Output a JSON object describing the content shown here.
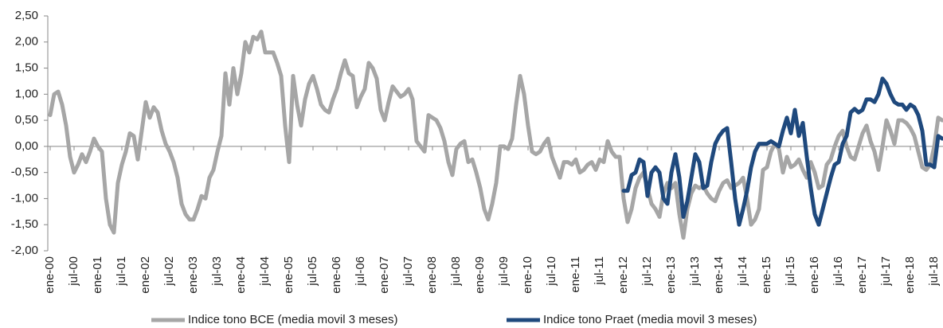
{
  "chart_data": {
    "type": "line",
    "categories": [
      "ene-00",
      null,
      null,
      null,
      null,
      null,
      "jul-00",
      null,
      null,
      null,
      null,
      null,
      "ene-01",
      null,
      null,
      null,
      null,
      null,
      "jul-01",
      null,
      null,
      null,
      null,
      null,
      "ene-02",
      null,
      null,
      null,
      null,
      null,
      "jul-02",
      null,
      null,
      null,
      null,
      null,
      "ene-03",
      null,
      null,
      null,
      null,
      null,
      "jul-03",
      null,
      null,
      null,
      null,
      null,
      "ene-04",
      null,
      null,
      null,
      null,
      null,
      "jul-04",
      null,
      null,
      null,
      null,
      null,
      "ene-05",
      null,
      null,
      null,
      null,
      null,
      "jul-05",
      null,
      null,
      null,
      null,
      null,
      "ene-06",
      null,
      null,
      null,
      null,
      null,
      "jul-06",
      null,
      null,
      null,
      null,
      null,
      "ene-07",
      null,
      null,
      null,
      null,
      null,
      "jul-07",
      null,
      null,
      null,
      null,
      null,
      "ene-08",
      null,
      null,
      null,
      null,
      null,
      "jul-08",
      null,
      null,
      null,
      null,
      null,
      "ene-09",
      null,
      null,
      null,
      null,
      null,
      "jul-09",
      null,
      null,
      null,
      null,
      null,
      "ene-10",
      null,
      null,
      null,
      null,
      null,
      "jul-10",
      null,
      null,
      null,
      null,
      null,
      "ene-11",
      null,
      null,
      null,
      null,
      null,
      "jul-11",
      null,
      null,
      null,
      null,
      null,
      "ene-12",
      null,
      null,
      null,
      null,
      null,
      "jul-12",
      null,
      null,
      null,
      null,
      null,
      "ene-13",
      null,
      null,
      null,
      null,
      null,
      "jul-13",
      null,
      null,
      null,
      null,
      null,
      "ene-14",
      null,
      null,
      null,
      null,
      null,
      "jul-14",
      null,
      null,
      null,
      null,
      null,
      "ene-15",
      null,
      null,
      null,
      null,
      null,
      "jul-15",
      null,
      null,
      null,
      null,
      null,
      "ene-16",
      null,
      null,
      null,
      null,
      null,
      "jul-16",
      null,
      null,
      null,
      null,
      null,
      "ene-17",
      null,
      null,
      null,
      null,
      null,
      "jul-17",
      null,
      null,
      null,
      null,
      null,
      "ene-18",
      null,
      null,
      null,
      null,
      null,
      "jul-18",
      null,
      null
    ],
    "series": [
      {
        "name": "Indice tono BCE (media movil 3 meses)",
        "color": "#a6a6a6",
        "values": [
          0.6,
          1.0,
          1.05,
          0.8,
          0.4,
          -0.2,
          -0.5,
          -0.35,
          -0.15,
          -0.3,
          -0.1,
          0.15,
          0.0,
          -0.1,
          -1.0,
          -1.5,
          -1.65,
          -0.7,
          -0.35,
          -0.1,
          0.25,
          0.2,
          -0.25,
          0.3,
          0.85,
          0.55,
          0.75,
          0.65,
          0.3,
          0.05,
          -0.1,
          -0.3,
          -0.6,
          -1.1,
          -1.3,
          -1.4,
          -1.4,
          -1.2,
          -0.95,
          -1.0,
          -0.6,
          -0.45,
          -0.1,
          0.2,
          1.4,
          0.8,
          1.5,
          1.0,
          1.4,
          2.0,
          1.8,
          2.1,
          2.05,
          2.2,
          1.8,
          1.8,
          1.8,
          1.6,
          1.35,
          0.4,
          -0.3,
          1.35,
          0.8,
          0.4,
          0.9,
          1.2,
          1.35,
          1.1,
          0.8,
          0.7,
          0.65,
          0.9,
          1.1,
          1.4,
          1.65,
          1.4,
          1.35,
          0.75,
          0.95,
          1.1,
          1.6,
          1.5,
          1.3,
          0.7,
          0.5,
          0.85,
          1.15,
          1.05,
          0.95,
          1.0,
          1.1,
          0.9,
          0.1,
          0.0,
          -0.1,
          0.6,
          0.55,
          0.5,
          0.35,
          0.1,
          -0.3,
          -0.55,
          -0.05,
          0.05,
          0.1,
          -0.3,
          -0.25,
          -0.5,
          -0.8,
          -1.2,
          -1.4,
          -1.1,
          -0.7,
          0.0,
          0.0,
          -0.05,
          0.15,
          0.8,
          1.35,
          1.0,
          0.4,
          -0.1,
          -0.15,
          -0.1,
          0.05,
          0.15,
          -0.2,
          -0.4,
          -0.6,
          -0.3,
          -0.3,
          -0.35,
          -0.25,
          -0.5,
          -0.45,
          -0.35,
          -0.3,
          -0.45,
          -0.25,
          -0.3,
          0.1,
          -0.1,
          -0.2,
          -0.2,
          -1.0,
          -1.45,
          -1.2,
          -0.8,
          -0.6,
          -0.5,
          -0.8,
          -1.1,
          -1.2,
          -1.35,
          -0.9,
          -0.7,
          -0.8,
          -0.7,
          -1.3,
          -1.75,
          -1.2,
          -0.9,
          -0.75,
          -0.8,
          -0.75,
          -0.9,
          -1.0,
          -1.05,
          -0.85,
          -0.7,
          -0.65,
          -0.8,
          -0.75,
          -0.7,
          -0.6,
          -1.0,
          -1.5,
          -1.4,
          -1.2,
          -0.45,
          -0.4,
          -0.1,
          0.05,
          -0.05,
          -0.5,
          -0.2,
          -0.4,
          -0.35,
          -0.25,
          -0.45,
          -0.6,
          -0.3,
          -0.5,
          -0.8,
          -0.75,
          -0.35,
          -0.25,
          0.0,
          0.2,
          0.3,
          0.0,
          -0.2,
          -0.25,
          0.0,
          0.25,
          0.4,
          0.1,
          -0.1,
          -0.45,
          0.0,
          0.5,
          0.3,
          0.05,
          0.5,
          0.5,
          0.45,
          0.35,
          0.2,
          -0.1,
          -0.4,
          -0.45,
          -0.35,
          0.0,
          0.55,
          0.5
        ]
      },
      {
        "name": "Indice tono Praet (media movil 3 meses)",
        "color": "#1f497d",
        "values": [
          null,
          null,
          null,
          null,
          null,
          null,
          null,
          null,
          null,
          null,
          null,
          null,
          null,
          null,
          null,
          null,
          null,
          null,
          null,
          null,
          null,
          null,
          null,
          null,
          null,
          null,
          null,
          null,
          null,
          null,
          null,
          null,
          null,
          null,
          null,
          null,
          null,
          null,
          null,
          null,
          null,
          null,
          null,
          null,
          null,
          null,
          null,
          null,
          null,
          null,
          null,
          null,
          null,
          null,
          null,
          null,
          null,
          null,
          null,
          null,
          null,
          null,
          null,
          null,
          null,
          null,
          null,
          null,
          null,
          null,
          null,
          null,
          null,
          null,
          null,
          null,
          null,
          null,
          null,
          null,
          null,
          null,
          null,
          null,
          null,
          null,
          null,
          null,
          null,
          null,
          null,
          null,
          null,
          null,
          null,
          null,
          null,
          null,
          null,
          null,
          null,
          null,
          null,
          null,
          null,
          null,
          null,
          null,
          null,
          null,
          null,
          null,
          null,
          null,
          null,
          null,
          null,
          null,
          null,
          null,
          null,
          null,
          null,
          null,
          null,
          null,
          null,
          null,
          null,
          null,
          null,
          null,
          null,
          null,
          null,
          null,
          null,
          null,
          null,
          null,
          null,
          null,
          null,
          null,
          -0.85,
          -0.85,
          -0.55,
          -0.5,
          -0.25,
          -0.3,
          -0.95,
          -0.5,
          -0.4,
          -0.5,
          -1.0,
          -1.1,
          -0.5,
          -0.15,
          -0.6,
          -1.35,
          -1.05,
          -0.6,
          -0.15,
          -0.3,
          -0.8,
          -0.75,
          -0.3,
          0.05,
          0.2,
          0.3,
          0.35,
          -0.3,
          -1.0,
          -1.5,
          -1.2,
          -0.85,
          -0.4,
          -0.1,
          0.05,
          0.05,
          0.05,
          0.1,
          0.05,
          0.0,
          0.3,
          0.55,
          0.25,
          0.7,
          0.2,
          0.45,
          -0.2,
          -0.8,
          -1.3,
          -1.5,
          -1.2,
          -0.9,
          -0.6,
          -0.35,
          -0.3,
          0.05,
          0.2,
          0.65,
          0.72,
          0.65,
          0.7,
          0.9,
          0.9,
          0.85,
          1.0,
          1.3,
          1.2,
          1.0,
          0.85,
          0.8,
          0.8,
          0.7,
          0.8,
          0.75,
          0.6,
          0.3,
          -0.35,
          -0.35,
          -0.4,
          0.2,
          0.15
        ]
      }
    ],
    "ylim": [
      -2,
      2.5
    ],
    "yticks": [
      {
        "value": 2.5,
        "label": "2,50"
      },
      {
        "value": 2,
        "label": "2,00"
      },
      {
        "value": 1.5,
        "label": "1,50"
      },
      {
        "value": 1,
        "label": "1,00"
      },
      {
        "value": 0.5,
        "label": "0,50"
      },
      {
        "value": 0,
        "label": "0,00"
      },
      {
        "value": -0.5,
        "label": "-0,50"
      },
      {
        "value": -1,
        "label": "-1,00"
      },
      {
        "value": -1.5,
        "label": "-1,50"
      },
      {
        "value": -2,
        "label": "-2,00"
      }
    ],
    "grid": false,
    "legend": "bottom"
  }
}
